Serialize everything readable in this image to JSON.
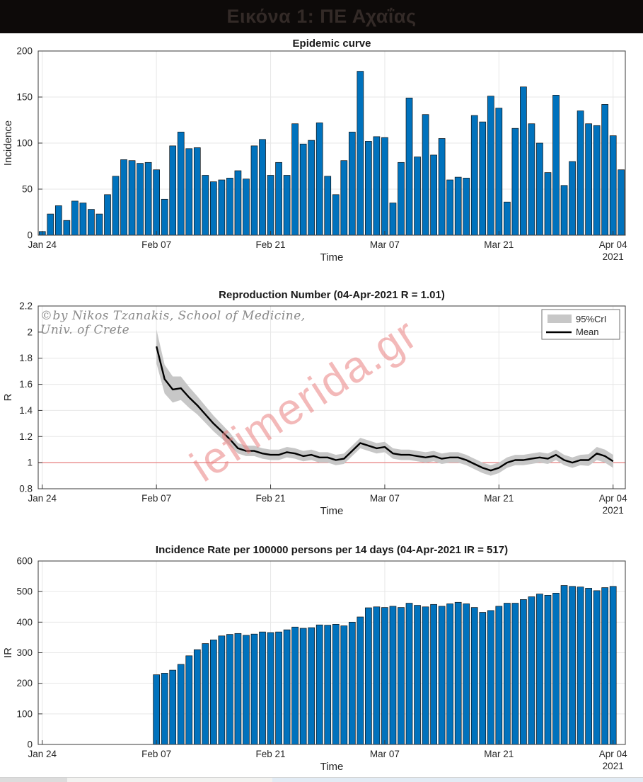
{
  "header": {
    "title": "Εικόνα 1: ΠΕ Αχαΐας"
  },
  "watermarks": {
    "copyright": "©by Nikos Tzanakis, School of Medicine, Univ. of Crete",
    "site": "iefimerida.gr"
  },
  "chart_data": [
    {
      "type": "bar",
      "title": "Epidemic curve",
      "xlabel": "Time",
      "ylabel": "Incidence",
      "ylim": [
        0,
        200
      ],
      "yticks": [
        0,
        50,
        100,
        150,
        200
      ],
      "ytick_labels": [
        "0",
        "50",
        "100",
        "150",
        "200"
      ],
      "xticks": [
        0,
        14,
        28,
        42,
        56,
        70
      ],
      "xtick_labels": [
        "Jan 24",
        "Feb 07",
        "Feb 21",
        "Mar 07",
        "Mar 21",
        "Apr 04"
      ],
      "year_label": "2021",
      "grid": true,
      "x_start": 0,
      "bar_color": "#0072BD",
      "values": [
        4,
        23,
        32,
        16,
        37,
        35,
        28,
        23,
        44,
        64,
        82,
        81,
        78,
        79,
        71,
        39,
        97,
        112,
        94,
        95,
        65,
        58,
        60,
        62,
        70,
        61,
        97,
        104,
        65,
        79,
        65,
        121,
        99,
        103,
        122,
        64,
        44,
        81,
        112,
        178,
        102,
        107,
        106,
        35,
        79,
        149,
        85,
        131,
        87,
        105,
        60,
        63,
        62,
        130,
        123,
        151,
        138,
        36,
        116,
        161,
        121,
        100,
        68,
        152,
        54,
        80,
        135,
        121,
        119,
        142,
        108,
        71
      ]
    },
    {
      "type": "line",
      "title": "Reproduction Number (04-Apr-2021 R = 1.01)",
      "xlabel": "Time",
      "ylabel": "R",
      "ylim": [
        0.8,
        2.2
      ],
      "yticks": [
        0.8,
        1,
        1.2,
        1.4,
        1.6,
        1.8,
        2,
        2.2
      ],
      "ytick_labels": [
        "0.8",
        "1",
        "1.2",
        "1.4",
        "1.6",
        "1.8",
        "2",
        "2.2"
      ],
      "xticks": [
        0,
        14,
        28,
        42,
        56,
        70
      ],
      "xtick_labels": [
        "Jan 24",
        "Feb 07",
        "Feb 21",
        "Mar 07",
        "Mar 21",
        "Apr 04"
      ],
      "year_label": "2021",
      "grid": true,
      "x_start": 14,
      "ref_value": 1,
      "ref_color": "#e87f7f",
      "band_color": "#c7c7c7",
      "line_color": "#000000",
      "legend_labels": [
        "95%CrI",
        "Mean"
      ],
      "legend_position": "top-right",
      "mean": [
        1.89,
        1.64,
        1.56,
        1.57,
        1.5,
        1.44,
        1.37,
        1.3,
        1.24,
        1.18,
        1.11,
        1.09,
        1.09,
        1.07,
        1.06,
        1.06,
        1.08,
        1.07,
        1.05,
        1.06,
        1.04,
        1.04,
        1.02,
        1.03,
        1.09,
        1.15,
        1.13,
        1.11,
        1.12,
        1.07,
        1.06,
        1.06,
        1.05,
        1.04,
        1.05,
        1.03,
        1.04,
        1.04,
        1.02,
        0.99,
        0.96,
        0.94,
        0.96,
        1.0,
        1.02,
        1.02,
        1.03,
        1.04,
        1.03,
        1.06,
        1.02,
        1.0,
        1.02,
        1.02,
        1.07,
        1.05,
        1.01
      ],
      "ci_half": [
        0.13,
        0.11,
        0.1,
        0.09,
        0.08,
        0.07,
        0.065,
        0.06,
        0.055,
        0.05,
        0.04,
        0.04,
        0.04,
        0.04,
        0.04,
        0.04,
        0.04,
        0.04,
        0.04,
        0.04,
        0.04,
        0.04,
        0.04,
        0.04,
        0.04,
        0.04,
        0.04,
        0.04,
        0.04,
        0.04,
        0.04,
        0.04,
        0.04,
        0.04,
        0.04,
        0.04,
        0.04,
        0.04,
        0.04,
        0.04,
        0.04,
        0.04,
        0.04,
        0.04,
        0.04,
        0.04,
        0.04,
        0.04,
        0.04,
        0.04,
        0.04,
        0.04,
        0.04,
        0.045,
        0.05,
        0.05,
        0.05
      ]
    },
    {
      "type": "bar",
      "title": "Incidence Rate per 100000 persons per 14 days (04-Apr-2021 IR = 517)",
      "xlabel": "Time",
      "ylabel": "IR",
      "ylim": [
        0,
        600
      ],
      "yticks": [
        0,
        100,
        200,
        300,
        400,
        500,
        600
      ],
      "ytick_labels": [
        "0",
        "100",
        "200",
        "300",
        "400",
        "500",
        "600"
      ],
      "xticks": [
        0,
        14,
        28,
        42,
        56,
        70
      ],
      "xtick_labels": [
        "Jan 24",
        "Feb 07",
        "Feb 21",
        "Mar 07",
        "Mar 21",
        "Apr 04"
      ],
      "year_label": "2021",
      "grid": true,
      "x_start": 14,
      "bar_color": "#0072BD",
      "values": [
        228,
        233,
        243,
        262,
        290,
        310,
        330,
        342,
        355,
        360,
        363,
        357,
        361,
        368,
        366,
        368,
        375,
        384,
        380,
        382,
        391,
        390,
        393,
        388,
        400,
        417,
        447,
        450,
        448,
        452,
        448,
        462,
        455,
        450,
        458,
        452,
        460,
        465,
        460,
        448,
        432,
        438,
        452,
        462,
        462,
        474,
        483,
        492,
        488,
        495,
        520,
        517,
        515,
        511,
        503,
        513,
        517
      ]
    }
  ]
}
